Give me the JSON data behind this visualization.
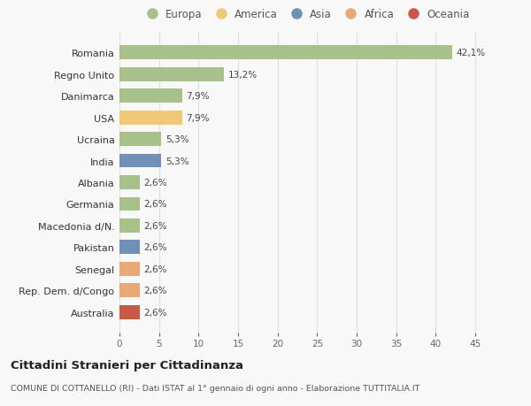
{
  "countries": [
    "Romania",
    "Regno Unito",
    "Danimarca",
    "USA",
    "Ucraina",
    "India",
    "Albania",
    "Germania",
    "Macedonia d/N.",
    "Pakistan",
    "Senegal",
    "Rep. Dem. d/Congo",
    "Australia"
  ],
  "values": [
    42.1,
    13.2,
    7.9,
    7.9,
    5.3,
    5.3,
    2.6,
    2.6,
    2.6,
    2.6,
    2.6,
    2.6,
    2.6
  ],
  "labels": [
    "42,1%",
    "13,2%",
    "7,9%",
    "7,9%",
    "5,3%",
    "5,3%",
    "2,6%",
    "2,6%",
    "2,6%",
    "2,6%",
    "2,6%",
    "2,6%",
    "2,6%"
  ],
  "colors": [
    "#a8c08a",
    "#a8c08a",
    "#a8c08a",
    "#f0c878",
    "#a8c08a",
    "#7090b8",
    "#a8c08a",
    "#a8c08a",
    "#a8c08a",
    "#7090b8",
    "#e8a878",
    "#e8a878",
    "#c85848"
  ],
  "legend_labels": [
    "Europa",
    "America",
    "Asia",
    "Africa",
    "Oceania"
  ],
  "legend_colors": [
    "#a8c08a",
    "#f0c878",
    "#7090b8",
    "#e8a878",
    "#c85848"
  ],
  "title": "Cittadini Stranieri per Cittadinanza",
  "subtitle": "COMUNE DI COTTANELLO (RI) - Dati ISTAT al 1° gennaio di ogni anno - Elaborazione TUTTITALIA.IT",
  "xlim": [
    0,
    47
  ],
  "xticks": [
    0,
    5,
    10,
    15,
    20,
    25,
    30,
    35,
    40,
    45
  ],
  "background_color": "#f8f8f8",
  "grid_color": "#e0e0e0",
  "bar_height": 0.65
}
